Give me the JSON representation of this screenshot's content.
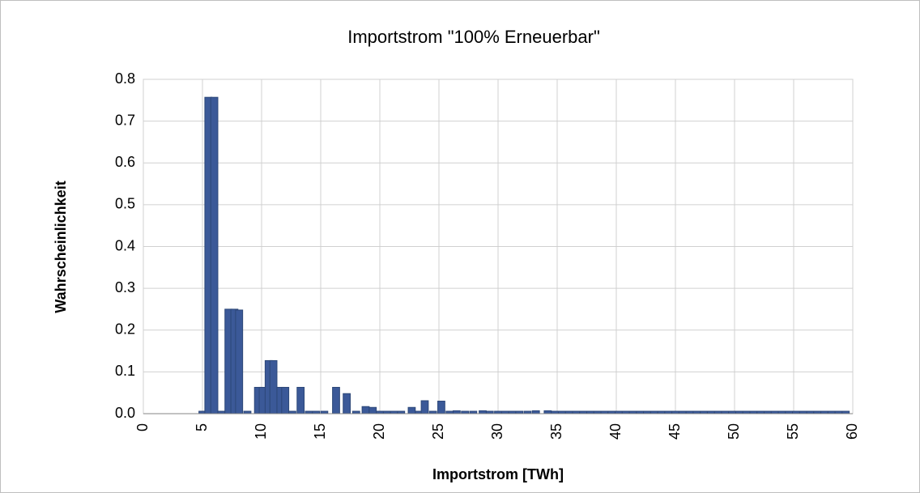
{
  "chart_data": {
    "type": "bar",
    "title": "Importstrom \"100% Erneuerbar\"",
    "x_label": "Importstrom [TWh]",
    "y_label": "Wahrscheinlichkeit",
    "color": "#3b5998",
    "grid": true,
    "xlim": [
      0,
      60
    ],
    "xticks": [
      0,
      5,
      10,
      15,
      20,
      25,
      30,
      35,
      40,
      45,
      50,
      55,
      60
    ],
    "ylim": [
      0,
      0.8
    ],
    "yticks": [
      {
        "value": 0,
        "label": "0.0"
      },
      0.1,
      0.2,
      0.3,
      0.4,
      0.5,
      0.6,
      0.7,
      0.8
    ],
    "x": [
      5.0,
      5.5,
      6.0,
      6.6,
      7.2,
      7.7,
      8.1,
      8.8,
      9.7,
      10.1,
      10.6,
      11.0,
      11.6,
      12.0,
      12.6,
      13.3,
      14.0,
      14.6,
      15.3,
      16.3,
      17.2,
      18.0,
      18.8,
      19.4,
      20.0,
      20.6,
      21.2,
      21.8,
      22.7,
      23.3,
      23.8,
      24.5,
      25.2,
      25.9,
      26.5,
      27.2,
      27.9,
      28.7,
      29.3,
      30.0,
      30.6,
      31.2,
      31.8,
      32.5,
      33.2,
      34.2,
      34.8,
      35.4,
      36.0,
      36.6,
      37.2,
      37.8,
      38.4,
      39.0,
      39.6,
      40.2,
      40.8,
      41.4,
      42.0,
      42.6,
      43.2,
      43.8,
      44.4,
      45.0,
      45.6,
      46.2,
      46.8,
      47.4,
      48.0,
      48.6,
      49.2,
      49.8,
      50.4,
      51.0,
      51.6,
      52.2,
      52.8,
      53.4,
      54.0,
      54.6,
      55.2,
      55.8,
      56.4,
      57.0,
      57.6,
      58.2,
      58.8,
      59.4
    ],
    "values": [
      0.004,
      0.757,
      0.757,
      0.004,
      0.25,
      0.25,
      0.248,
      0.004,
      0.063,
      0.063,
      0.127,
      0.127,
      0.063,
      0.063,
      0.004,
      0.063,
      0.004,
      0.004,
      0.004,
      0.063,
      0.048,
      0.004,
      0.017,
      0.015,
      0.004,
      0.004,
      0.004,
      0.004,
      0.015,
      0.004,
      0.031,
      0.004,
      0.03,
      0.004,
      0.007,
      0.004,
      0.004,
      0.007,
      0.004,
      0.004,
      0.004,
      0.004,
      0.004,
      0.004,
      0.007,
      0.007,
      0.004,
      0.004,
      0.004,
      0.004,
      0.004,
      0.004,
      0.004,
      0.004,
      0.004,
      0.004,
      0.004,
      0.004,
      0.004,
      0.004,
      0.004,
      0.004,
      0.004,
      0.004,
      0.004,
      0.004,
      0.004,
      0.004,
      0.004,
      0.004,
      0.004,
      0.004,
      0.004,
      0.004,
      0.004,
      0.004,
      0.004,
      0.004,
      0.004,
      0.004,
      0.004,
      0.004,
      0.004,
      0.004,
      0.004,
      0.004,
      0.004,
      0.004
    ]
  }
}
